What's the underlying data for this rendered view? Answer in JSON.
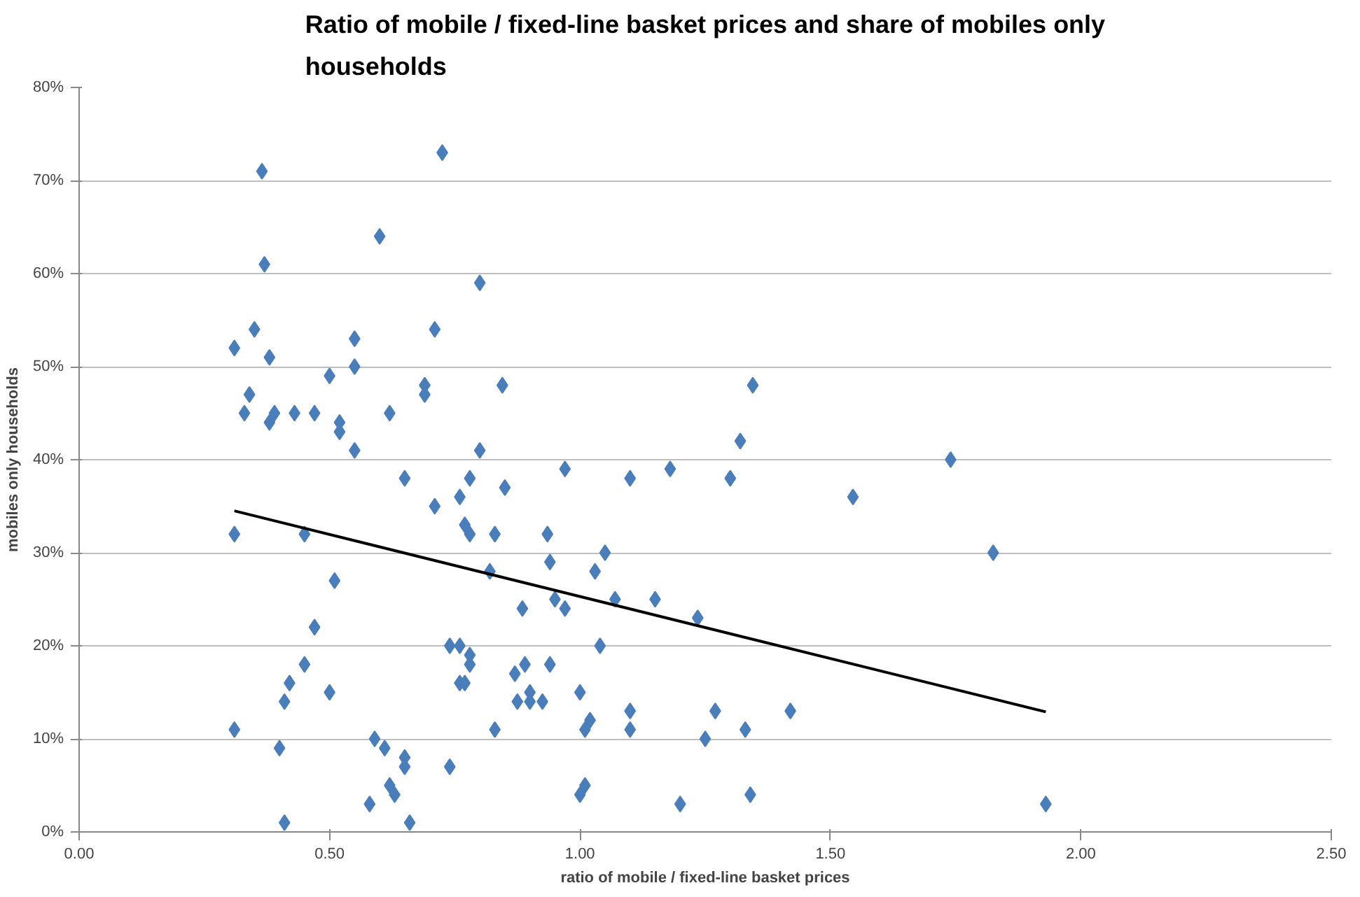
{
  "chart_data": {
    "type": "scatter",
    "title": "Ratio of mobile / fixed-line basket prices and share of mobiles only households",
    "xlabel": "ratio of mobile / fixed-line basket prices",
    "ylabel": "mobiles only households",
    "xlim": [
      0,
      2.5
    ],
    "xticks": [
      {
        "value": 0,
        "label": "0.00"
      },
      {
        "value": 0.5,
        "label": "0.50"
      },
      {
        "value": 1,
        "label": "1.00"
      },
      {
        "value": 1.5,
        "label": "1.50"
      },
      {
        "value": 2,
        "label": "2.00"
      },
      {
        "value": 2.5,
        "label": "2.50"
      }
    ],
    "ylim": [
      0,
      80
    ],
    "yticks": [
      {
        "value": 0,
        "label": "0%"
      },
      {
        "value": 10,
        "label": "10%"
      },
      {
        "value": 20,
        "label": "20%"
      },
      {
        "value": 30,
        "label": "30%"
      },
      {
        "value": 40,
        "label": "40%"
      },
      {
        "value": 50,
        "label": "50%"
      },
      {
        "value": 60,
        "label": "60%"
      },
      {
        "value": 70,
        "label": "70%"
      },
      {
        "value": 80,
        "label": "80%"
      }
    ],
    "grid": "y",
    "marker": "diamond",
    "series": [
      {
        "color": "#4a7ebb",
        "x": [
          0.31,
          0.31,
          0.31,
          0.365,
          0.37,
          0.34,
          0.33,
          0.35,
          0.38,
          0.38,
          0.39,
          0.43,
          0.47,
          0.42,
          0.41,
          0.45,
          0.45,
          0.47,
          0.5,
          0.51,
          0.5,
          0.52,
          0.52,
          0.55,
          0.55,
          0.55,
          0.4,
          0.41,
          0.6,
          0.62,
          0.59,
          0.61,
          0.58,
          0.62,
          0.63,
          0.65,
          0.65,
          0.66,
          0.65,
          0.69,
          0.69,
          0.71,
          0.71,
          0.725,
          0.74,
          0.76,
          0.74,
          0.76,
          0.77,
          0.76,
          0.77,
          0.78,
          0.78,
          0.78,
          0.78,
          0.8,
          0.8,
          0.82,
          0.83,
          0.83,
          0.845,
          0.85,
          0.87,
          0.875,
          0.885,
          0.89,
          0.9,
          0.9,
          0.925,
          0.935,
          0.94,
          0.95,
          0.94,
          0.97,
          0.97,
          1.0,
          1.0,
          1.01,
          1.01,
          1.02,
          1.03,
          1.05,
          1.04,
          1.07,
          1.1,
          1.1,
          1.1,
          1.2,
          1.18,
          1.15,
          1.235,
          1.25,
          1.27,
          1.3,
          1.32,
          1.33,
          1.34,
          1.345,
          1.42,
          1.545,
          1.74,
          1.825,
          1.93
        ],
        "values": [
          52,
          32,
          11,
          71,
          61,
          47,
          45,
          54,
          51,
          44,
          45,
          45,
          45,
          16,
          14,
          18,
          32,
          22,
          49,
          27,
          15,
          44,
          43,
          41,
          50,
          53,
          9,
          1,
          64,
          45,
          10,
          9,
          3,
          5,
          4,
          7,
          8,
          1,
          38,
          48,
          47,
          35,
          54,
          73,
          20,
          20,
          7,
          16,
          16,
          36,
          33,
          32,
          38,
          19,
          18,
          59,
          41,
          28,
          32,
          11,
          48,
          37,
          17,
          14,
          24,
          18,
          14,
          15,
          14,
          32,
          29,
          25,
          18,
          24,
          39,
          15,
          4,
          5,
          11,
          12,
          28,
          30,
          20,
          25,
          11,
          13,
          38,
          3,
          39,
          25,
          23,
          10,
          13,
          38,
          42,
          11,
          4,
          48,
          13,
          36,
          40,
          30,
          3
        ]
      },
      {
        "type": "line",
        "color": "#000000",
        "marker": "none",
        "x": [
          0.31,
          1.93
        ],
        "values": [
          34.5,
          12.9
        ]
      }
    ]
  }
}
